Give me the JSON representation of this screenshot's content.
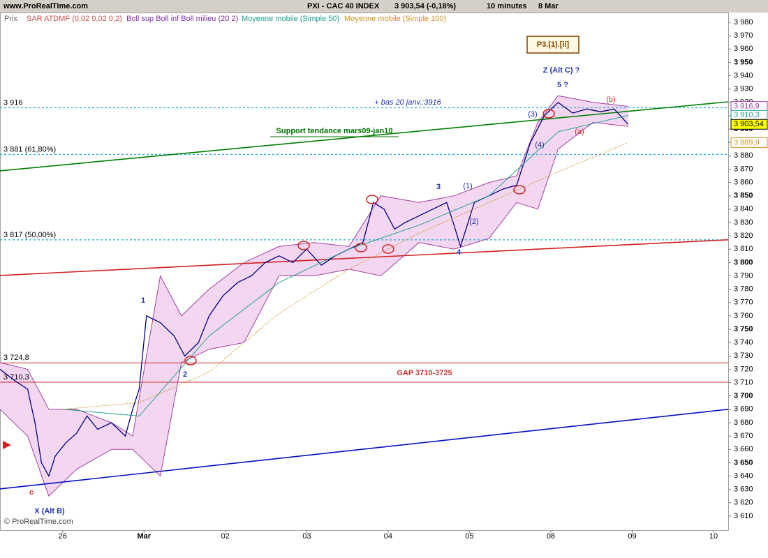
{
  "chart_data": {
    "type": "line",
    "header": {
      "site": "www.ProRealTime.com",
      "title": "PXI - CAC 40 INDEX",
      "last": "3 903,54 (-0,18%)",
      "period": "10 minutes",
      "date": "8 Mar"
    },
    "y_label": "Prix",
    "indicator_labels": [
      {
        "text": "SAR ATDMF (0,02 0,02 0,2)",
        "color": "#d05050"
      },
      {
        "text": "Boll sup Boll inf Boll milieu (20 2)",
        "color": "#8030a0"
      }
    ],
    "xlim": [
      -0.77,
      8.18
    ],
    "xticks": [
      {
        "value": 0,
        "label": "26"
      },
      {
        "value": 1,
        "label": "Mar"
      },
      {
        "value": 2,
        "label": "02"
      },
      {
        "value": 3,
        "label": "03"
      },
      {
        "value": 4,
        "label": "04"
      },
      {
        "value": 5,
        "label": "05"
      },
      {
        "value": 6,
        "label": "08"
      },
      {
        "value": 7,
        "label": "09"
      },
      {
        "value": 8,
        "label": "10"
      }
    ],
    "ylim": [
      3599.5,
      3987.3
    ],
    "yticks": [
      {
        "value": 3610,
        "label": "3 610"
      },
      {
        "value": 3620,
        "label": "3 620"
      },
      {
        "value": 3630,
        "label": "3 630"
      },
      {
        "value": 3640,
        "label": "3 640"
      },
      {
        "value": 3650,
        "label": "3 650"
      },
      {
        "value": 3660,
        "label": "3 660"
      },
      {
        "value": 3670,
        "label": "3 670"
      },
      {
        "value": 3680,
        "label": "3 680"
      },
      {
        "value": 3690,
        "label": "3 690"
      },
      {
        "value": 3700,
        "label": "3 700"
      },
      {
        "value": 3710,
        "label": "3 710"
      },
      {
        "value": 3720,
        "label": "3 720"
      },
      {
        "value": 3730,
        "label": "3 730"
      },
      {
        "value": 3740,
        "label": "3 740"
      },
      {
        "value": 3750,
        "label": "3 750"
      },
      {
        "value": 3760,
        "label": "3 760"
      },
      {
        "value": 3770,
        "label": "3 770"
      },
      {
        "value": 3780,
        "label": "3 780"
      },
      {
        "value": 3790,
        "label": "3 790"
      },
      {
        "value": 3800,
        "label": "3 800"
      },
      {
        "value": 3810,
        "label": "3 810"
      },
      {
        "value": 3820,
        "label": "3 820"
      },
      {
        "value": 3830,
        "label": "3 830"
      },
      {
        "value": 3840,
        "label": "3 840"
      },
      {
        "value": 3850,
        "label": "3 850"
      },
      {
        "value": 3860,
        "label": "3 860"
      },
      {
        "value": 3870,
        "label": "3 870"
      },
      {
        "value": 3880,
        "label": "3 880"
      },
      {
        "value": 3890,
        "label": "3 890"
      },
      {
        "value": 3900,
        "label": "3 900"
      },
      {
        "value": 3910,
        "label": "3 910"
      },
      {
        "value": 3920,
        "label": "3 920"
      },
      {
        "value": 3930,
        "label": "3 930"
      },
      {
        "value": 3940,
        "label": "3 940"
      },
      {
        "value": 3950,
        "label": "3 950"
      },
      {
        "value": 3960,
        "label": "3 960"
      },
      {
        "value": 3970,
        "label": "3 970"
      },
      {
        "value": 3980,
        "label": "3 980"
      }
    ],
    "bands": {
      "color": "#a040a0",
      "fill": "#f3d6f0",
      "x": [
        -0.77,
        -0.43,
        -0.17,
        0.17,
        0.6,
        0.86,
        1.2,
        1.46,
        1.8,
        2.23,
        2.66,
        3.09,
        3.52,
        3.91,
        4.38,
        4.81,
        5.24,
        5.58,
        5.84,
        6.09,
        6.52,
        6.95
      ],
      "upper": [
        3725,
        3720,
        3690,
        3690,
        3680,
        3670,
        3790,
        3760,
        3780,
        3800,
        3812,
        3815,
        3812,
        3850,
        3845,
        3850,
        3860,
        3865,
        3905,
        3925,
        3920,
        3917
      ],
      "lower": [
        3690,
        3670,
        3625,
        3645,
        3660,
        3660,
        3640,
        3725,
        3735,
        3740,
        3790,
        3790,
        3795,
        3790,
        3815,
        3810,
        3818,
        3845,
        3840,
        3885,
        3905,
        3902
      ]
    },
    "series": [
      {
        "color": "#000080",
        "x": [
          -0.77,
          -0.6,
          -0.43,
          -0.34,
          -0.26,
          -0.17,
          -0.09,
          0.04,
          0.17,
          0.3,
          0.43,
          0.6,
          0.77,
          0.86,
          0.94,
          1.03,
          1.2,
          1.37,
          1.5,
          1.67,
          1.8,
          1.97,
          2.15,
          2.32,
          2.49,
          2.66,
          2.83,
          3.0,
          3.18,
          3.35,
          3.52,
          3.69,
          3.82,
          3.95,
          4.08,
          4.21,
          4.38,
          4.55,
          4.72,
          4.81,
          4.89,
          5.06,
          5.24,
          5.41,
          5.58,
          5.75,
          5.92,
          6.09,
          6.27,
          6.44,
          6.61,
          6.78,
          6.95
        ],
        "values": [
          3720,
          3712,
          3705,
          3680,
          3650,
          3640,
          3655,
          3665,
          3672,
          3685,
          3675,
          3680,
          3670,
          3690,
          3705,
          3760,
          3755,
          3745,
          3730,
          3740,
          3760,
          3775,
          3785,
          3790,
          3800,
          3805,
          3800,
          3810,
          3798,
          3805,
          3810,
          3815,
          3845,
          3840,
          3825,
          3830,
          3835,
          3840,
          3845,
          3828,
          3812,
          3845,
          3850,
          3855,
          3858,
          3890,
          3910,
          3920,
          3912,
          3915,
          3913,
          3915,
          3903.54
        ]
      },
      {
        "name": "Moyenne mobile (Simple 50)",
        "color": "#20a090",
        "dash": false,
        "x": [
          0,
          0.94,
          1.8,
          2.66,
          3.52,
          4.38,
          5.24,
          6.09,
          6.95
        ],
        "values": [
          3690,
          3685,
          3745,
          3785,
          3810,
          3828,
          3850,
          3898,
          3910.3
        ]
      },
      {
        "name": "Moyenne mobile (Simple 100)",
        "color": "#d09020",
        "dash": true,
        "x": [
          0,
          0.94,
          1.8,
          2.66,
          3.52,
          4.38,
          5.24,
          6.09,
          6.95
        ],
        "values": [
          3690,
          3695,
          3718,
          3762,
          3795,
          3822,
          3845,
          3868,
          3889.9
        ]
      }
    ],
    "trendlines": [
      {
        "color": "#008000",
        "x": [
          -0.77,
          8.18
        ],
        "values": [
          3868.7,
          3920.4
        ]
      },
      {
        "color": "#d02020",
        "x": [
          -0.77,
          8.18
        ],
        "values": [
          3790.3,
          3817
        ]
      },
      {
        "color": "#0010c0",
        "x": [
          -0.77,
          8.18
        ],
        "values": [
          3630.4,
          3690
        ]
      }
    ],
    "levels": [
      {
        "value": 3916,
        "label": "3 916",
        "color": "#30b0e0",
        "dotted": true
      },
      {
        "value": 3881,
        "label": "3 881 (61,80%)",
        "color": "#30b0e0",
        "dotted": true
      },
      {
        "value": 3817,
        "label": "3 817 (50,00%)",
        "color": "#30b0e0",
        "dotted": true
      },
      {
        "value": 3724.8,
        "label": "3 724,8",
        "color": "#d03030",
        "dotted": false
      },
      {
        "value": 3710.3,
        "label": "3 710,3",
        "color": "#d03030",
        "dotted": false
      }
    ],
    "price_boxes": [
      {
        "value": 3916.9,
        "label": "3 916,9",
        "color": "#a040a0",
        "highlight": false
      },
      {
        "value": 3910.3,
        "label": "3 910,3",
        "color": "#20a090",
        "highlight": false
      },
      {
        "value": 3903.54,
        "label": "3 903,54",
        "color": "#000000",
        "highlight": true
      },
      {
        "value": 3889.9,
        "label": "3 889,9",
        "color": "#d09020",
        "highlight": false
      }
    ],
    "annotations": [
      {
        "text": "P3.(1).[ii]",
        "color": "#804000"
      },
      {
        "text": "Z (Alt C) ?",
        "color": "#2030b0"
      },
      {
        "text": "5 ?",
        "color": "#2030b0"
      },
      {
        "text": "+ bas 20 janv.:3916",
        "color": "#2030b0"
      },
      {
        "text": "Support tendance mars09-jan10",
        "color": "#007000"
      },
      {
        "text": "GAP 3710-3725",
        "color": "#d03030"
      },
      {
        "text": "X (Alt B)",
        "color": "#2030b0"
      },
      {
        "text": "1",
        "color": "#2030b0"
      },
      {
        "text": "2",
        "color": "#2030b0"
      },
      {
        "text": "3",
        "color": "#2030b0"
      },
      {
        "text": "4",
        "color": "#2030b0"
      },
      {
        "text": "c",
        "color": "#d03030"
      },
      {
        "text": "(1)",
        "color": "#2030b0"
      },
      {
        "text": "(2)",
        "color": "#2030b0"
      },
      {
        "text": "(3)",
        "color": "#2030b0"
      },
      {
        "text": "(4)",
        "color": "#2030b0"
      },
      {
        "text": "(a)",
        "color": "#d03030"
      },
      {
        "text": "(b)",
        "color": "#d03030"
      }
    ],
    "copyright": "© ProRealTime.com"
  }
}
